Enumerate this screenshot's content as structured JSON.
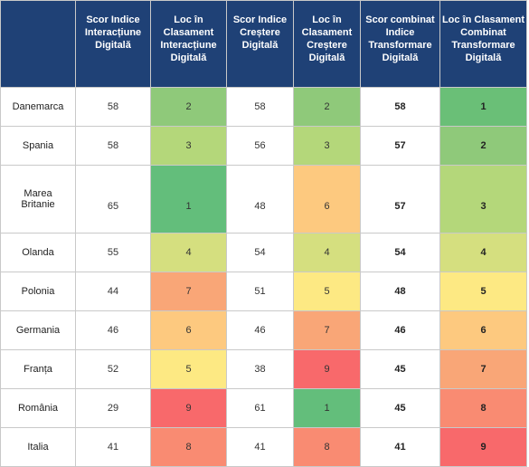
{
  "headers": [
    "",
    "Scor Indice Interacțiune Digitală",
    "Loc în Clasament Interacțiune Digitală",
    "Scor Indice Creștere Digitală",
    "Loc în Clasament Creștere Digitală",
    "Scor combinat Indice Transformare Digitală",
    "Loc  în Clasament Combinat Transformare Digitală"
  ],
  "rows": [
    {
      "country": "Danemarca",
      "scor_interactiune": "58",
      "loc_interactiune": "2",
      "scor_crestere": "58",
      "loc_crestere": "2",
      "scor_combinat": "58",
      "loc_combinat": "1",
      "colors": {
        "loc_interactiune": "#8fc97a",
        "loc_crestere": "#8fc97a",
        "loc_combinat": "#6abf77"
      }
    },
    {
      "country": "Spania",
      "scor_interactiune": "58",
      "loc_interactiune": "3",
      "scor_crestere": "56",
      "loc_crestere": "3",
      "scor_combinat": "57",
      "loc_combinat": "2",
      "colors": {
        "loc_interactiune": "#b4d77a",
        "loc_crestere": "#b4d77a",
        "loc_combinat": "#8fc97a"
      }
    },
    {
      "country": "Marea Britanie",
      "scor_interactiune": "65",
      "loc_interactiune": "1",
      "scor_crestere": "48",
      "loc_crestere": "6",
      "scor_combinat": "57",
      "loc_combinat": "3",
      "colors": {
        "loc_interactiune": "#63be7b",
        "loc_crestere": "#fdc97f",
        "loc_combinat": "#b4d77a"
      }
    },
    {
      "country": "Olanda",
      "scor_interactiune": "55",
      "loc_interactiune": "4",
      "scor_crestere": "54",
      "loc_crestere": "4",
      "scor_combinat": "54",
      "loc_combinat": "4",
      "colors": {
        "loc_interactiune": "#d5df7f",
        "loc_crestere": "#d5df7f",
        "loc_combinat": "#d5df7f"
      }
    },
    {
      "country": "Polonia",
      "scor_interactiune": "44",
      "loc_interactiune": "7",
      "scor_crestere": "51",
      "loc_crestere": "5",
      "scor_combinat": "48",
      "loc_combinat": "5",
      "colors": {
        "loc_interactiune": "#f9a677",
        "loc_crestere": "#fde983",
        "loc_combinat": "#fde983"
      }
    },
    {
      "country": "Germania",
      "scor_interactiune": "46",
      "loc_interactiune": "6",
      "scor_crestere": "46",
      "loc_crestere": "7",
      "scor_combinat": "46",
      "loc_combinat": "6",
      "colors": {
        "loc_interactiune": "#fdc97f",
        "loc_crestere": "#f9a677",
        "loc_combinat": "#fdc97f"
      }
    },
    {
      "country": "Franța",
      "scor_interactiune": "52",
      "loc_interactiune": "5",
      "scor_crestere": "38",
      "loc_crestere": "9",
      "scor_combinat": "45",
      "loc_combinat": "7",
      "colors": {
        "loc_interactiune": "#fde983",
        "loc_crestere": "#f8696b",
        "loc_combinat": "#f9a677"
      }
    },
    {
      "country": "România",
      "scor_interactiune": "29",
      "loc_interactiune": "9",
      "scor_crestere": "61",
      "loc_crestere": "1",
      "scor_combinat": "45",
      "loc_combinat": "8",
      "colors": {
        "loc_interactiune": "#f8696b",
        "loc_crestere": "#63be7b",
        "loc_combinat": "#f98b72"
      }
    },
    {
      "country": "Italia",
      "scor_interactiune": "41",
      "loc_interactiune": "8",
      "scor_crestere": "41",
      "loc_crestere": "8",
      "scor_combinat": "41",
      "loc_combinat": "9",
      "colors": {
        "loc_interactiune": "#f98b72",
        "loc_crestere": "#f98b72",
        "loc_combinat": "#f8696b"
      }
    }
  ]
}
